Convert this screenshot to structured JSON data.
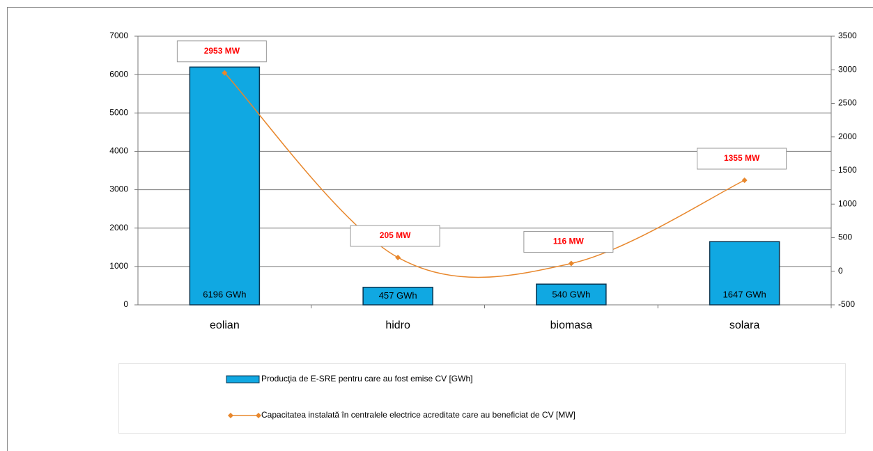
{
  "chart_data": {
    "type": "bar",
    "categories": [
      "eolian",
      "hidro",
      "biomasa",
      "solara"
    ],
    "series": [
      {
        "name": "Producţia de E-SRE pentru care au fost emise CV [GWh]",
        "type": "bar",
        "color": "#10a8e2",
        "values": [
          6196,
          457,
          540,
          1647
        ],
        "value_labels": [
          "6196 GWh",
          "457 GWh",
          "540 GWh",
          "1647 GWh"
        ]
      },
      {
        "name": "Capacitatea instalată în centralele electrice acreditate care au beneficiat de CV [MW]",
        "type": "line",
        "axis": "y2",
        "color": "#e8872c",
        "values": [
          2953,
          205,
          116,
          1355
        ],
        "value_labels": [
          "2953 MW",
          "205 MW",
          "116 MW",
          "1355 MW"
        ]
      }
    ],
    "ylim": [
      0,
      7000
    ],
    "yticks": [
      0,
      1000,
      2000,
      3000,
      4000,
      5000,
      6000,
      7000
    ],
    "y2lim": [
      -500,
      3500
    ],
    "y2ticks": [
      -500,
      0,
      500,
      1000,
      1500,
      2000,
      2500,
      3000,
      3500
    ],
    "grid": true,
    "legend": "bottom"
  }
}
